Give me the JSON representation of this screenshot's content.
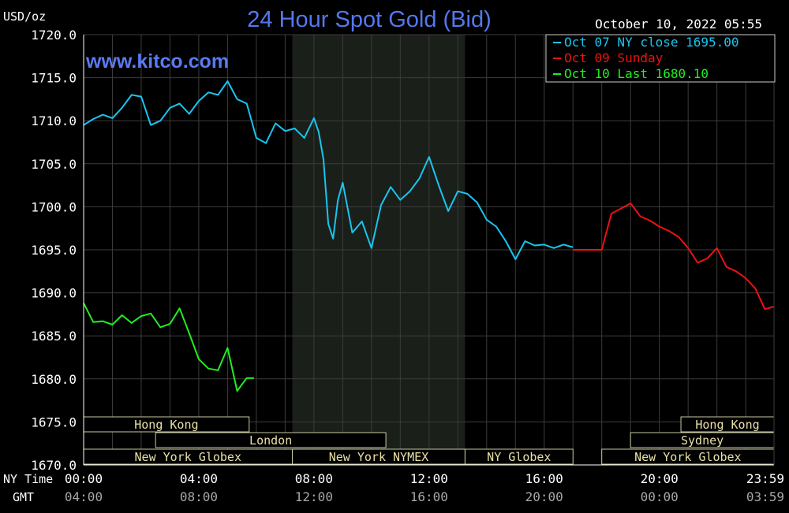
{
  "chart_data": {
    "type": "line",
    "title": "24 Hour Spot Gold (Bid)",
    "unit_label": "USD/oz",
    "timestamp": "October 10, 2022 05:55",
    "watermark": "www.kitco.com",
    "ylim": [
      1670,
      1720
    ],
    "grid": true,
    "legend_position": "top-right",
    "y_ticks": [
      "1720.0",
      "1715.0",
      "1710.0",
      "1705.0",
      "1700.0",
      "1695.0",
      "1690.0",
      "1685.0",
      "1680.0",
      "1675.0",
      "1670.0"
    ],
    "x_axis_ny_label": "NY Time",
    "x_axis_gmt_label": "GMT",
    "x_ticks_ny": [
      "00:00",
      "04:00",
      "08:00",
      "12:00",
      "16:00",
      "20:00",
      "23:59"
    ],
    "x_ticks_gmt": [
      "04:00",
      "08:00",
      "12:00",
      "16:00",
      "20:00",
      "00:00",
      "03:59"
    ],
    "legend": [
      {
        "label": "Oct 07 NY close 1695.00",
        "color": "#19c5f0"
      },
      {
        "label": "Oct 09 Sunday",
        "color": "#ee1111"
      },
      {
        "label": "Oct 10 Last 1680.10",
        "color": "#22ee22"
      }
    ],
    "sessions": [
      {
        "label": "Hong Kong",
        "start": "00:00",
        "end": "05:45",
        "row": 1
      },
      {
        "label": "London",
        "start": "02:30",
        "end": "10:30",
        "row": 2
      },
      {
        "label": "New York Globex",
        "start": "00:00",
        "end": "07:15",
        "row": 3
      },
      {
        "label": "New York NYMEX",
        "start": "07:15",
        "end": "13:15",
        "row": 3
      },
      {
        "label": "NY Globex",
        "start": "13:15",
        "end": "17:00",
        "row": 3
      },
      {
        "label": "Hong Kong",
        "start": "20:45",
        "end": "23:59",
        "row": 1
      },
      {
        "label": "Sydney",
        "start": "19:00",
        "end": "23:59",
        "row": 2
      },
      {
        "label": "New York Globex",
        "start": "18:00",
        "end": "23:59",
        "row": 3
      }
    ],
    "shaded_period": [
      "07:15",
      "13:15"
    ],
    "series": [
      {
        "name": "Oct 07 NY close 1695.00",
        "color": "#19c5f0",
        "x": [
          "00:00",
          "00:20",
          "00:40",
          "01:00",
          "01:20",
          "01:40",
          "02:00",
          "02:20",
          "02:40",
          "03:00",
          "03:20",
          "03:40",
          "04:00",
          "04:20",
          "04:40",
          "05:00",
          "05:20",
          "05:40",
          "06:00",
          "06:20",
          "06:40",
          "07:00",
          "07:20",
          "07:40",
          "08:00",
          "08:10",
          "08:20",
          "08:30",
          "08:40",
          "08:50",
          "09:00",
          "09:20",
          "09:40",
          "10:00",
          "10:20",
          "10:40",
          "11:00",
          "11:20",
          "11:40",
          "12:00",
          "12:20",
          "12:40",
          "13:00",
          "13:20",
          "13:40",
          "14:00",
          "14:20",
          "14:40",
          "15:00",
          "15:20",
          "15:40",
          "16:00",
          "16:20",
          "16:40",
          "17:00"
        ],
        "values": [
          1709.5,
          1710.2,
          1710.7,
          1710.3,
          1711.5,
          1713.0,
          1712.8,
          1709.5,
          1710.0,
          1711.5,
          1712.0,
          1710.8,
          1712.3,
          1713.3,
          1713.0,
          1714.6,
          1712.5,
          1712.0,
          1708.0,
          1707.4,
          1709.7,
          1708.8,
          1709.1,
          1708.0,
          1710.3,
          1708.7,
          1705.5,
          1698.0,
          1696.3,
          1700.8,
          1702.8,
          1697.0,
          1698.3,
          1695.2,
          1700.2,
          1702.3,
          1700.8,
          1701.8,
          1703.3,
          1705.8,
          1702.5,
          1699.5,
          1701.8,
          1701.5,
          1700.5,
          1698.5,
          1697.7,
          1696.0,
          1693.9,
          1696.0,
          1695.5,
          1695.6,
          1695.2,
          1695.6,
          1695.3
        ]
      },
      {
        "name": "Oct 09 Sunday",
        "color": "#ee1111",
        "x": [
          "17:00",
          "17:30",
          "18:00",
          "18:20",
          "18:40",
          "19:00",
          "19:20",
          "19:40",
          "20:00",
          "20:20",
          "20:40",
          "21:00",
          "21:20",
          "21:40",
          "22:00",
          "22:20",
          "22:40",
          "23:00",
          "23:20",
          "23:40",
          "23:59"
        ],
        "values": [
          1695.0,
          1695.0,
          1695.0,
          1699.2,
          1699.8,
          1700.4,
          1698.9,
          1698.4,
          1697.7,
          1697.2,
          1696.5,
          1695.2,
          1693.5,
          1694.0,
          1695.2,
          1693.0,
          1692.5,
          1691.7,
          1690.5,
          1688.1,
          1688.4
        ]
      },
      {
        "name": "Oct 10 Last 1680.10",
        "color": "#22ee22",
        "x": [
          "00:00",
          "00:20",
          "00:40",
          "01:00",
          "01:20",
          "01:40",
          "02:00",
          "02:20",
          "02:40",
          "03:00",
          "03:20",
          "03:40",
          "04:00",
          "04:20",
          "04:40",
          "05:00",
          "05:20",
          "05:40",
          "05:55"
        ],
        "values": [
          1688.8,
          1686.6,
          1686.7,
          1686.3,
          1687.4,
          1686.5,
          1687.3,
          1687.6,
          1686.0,
          1686.4,
          1688.2,
          1685.3,
          1682.3,
          1681.2,
          1681.0,
          1683.6,
          1678.6,
          1680.1,
          1680.1
        ]
      }
    ]
  }
}
